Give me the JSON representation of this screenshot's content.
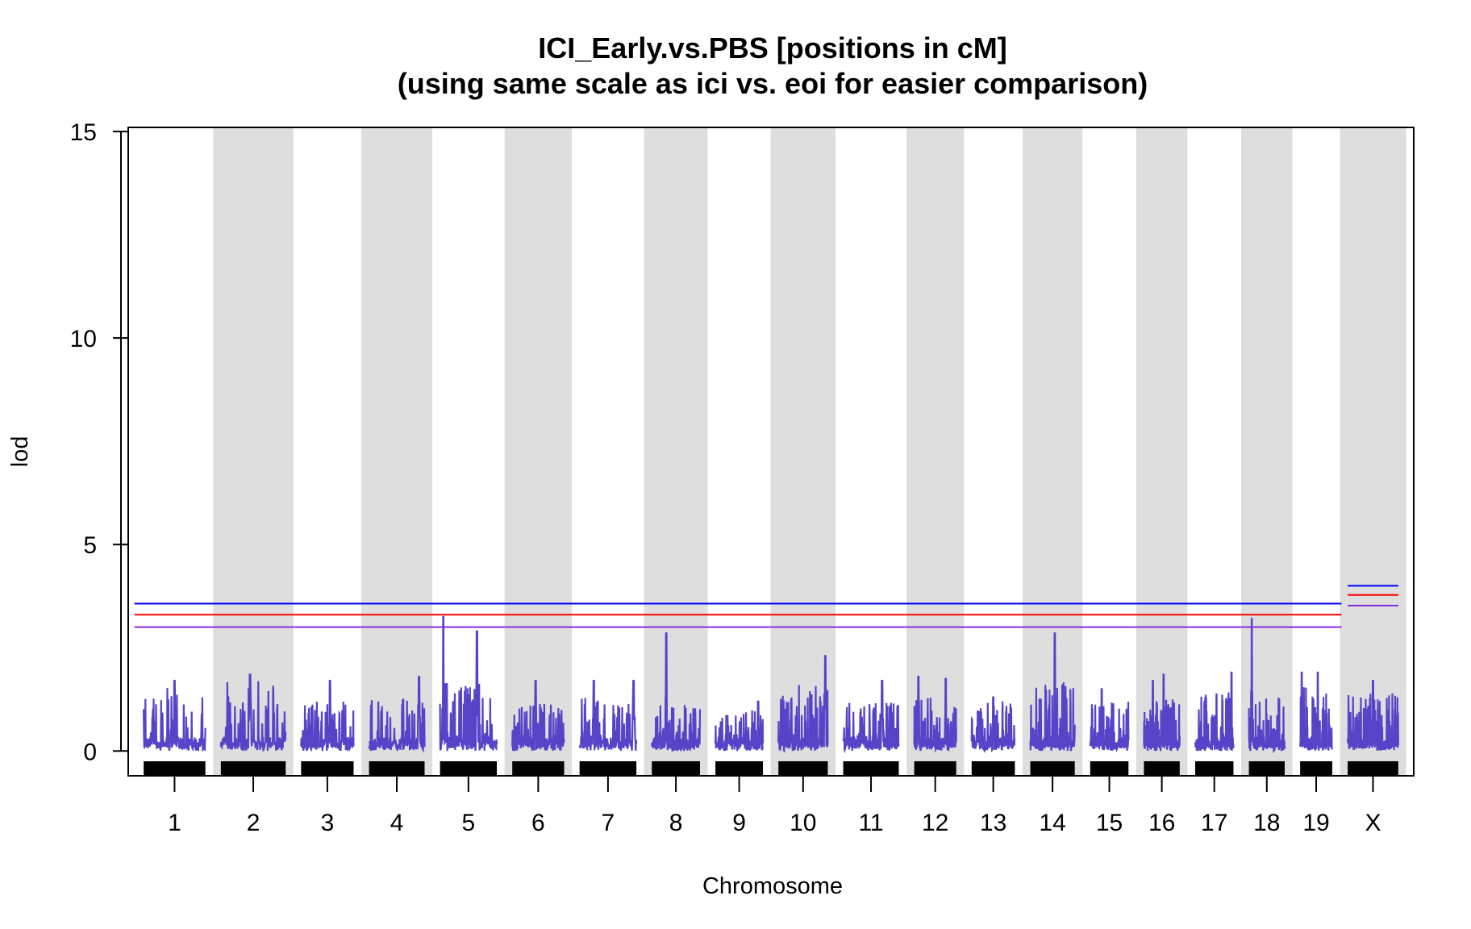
{
  "chart_data": {
    "type": "line",
    "title": "ICI_Early.vs.PBS [positions in cM]",
    "subtitle": "(using same scale as ici vs. eoi for easier comparison)",
    "xlabel": "Chromosome",
    "ylabel": "lod",
    "ylim": [
      -0.6,
      15.1
    ],
    "y_ticks": [
      0,
      5,
      10,
      15
    ],
    "y_tick_labels": [
      "0",
      "5",
      "10",
      "15"
    ],
    "chromosomes": [
      {
        "name": "1",
        "length_cM": 100,
        "baseline_max": 1.6,
        "peaks": [
          {
            "pos": 0.5,
            "lod": 1.7
          }
        ]
      },
      {
        "name": "2",
        "length_cM": 105,
        "baseline_max": 1.7,
        "peaks": [
          {
            "pos": 0.45,
            "lod": 1.85
          }
        ]
      },
      {
        "name": "3",
        "length_cM": 85,
        "baseline_max": 1.2,
        "peaks": [
          {
            "pos": 0.55,
            "lod": 1.7
          }
        ]
      },
      {
        "name": "4",
        "length_cM": 90,
        "baseline_max": 1.3,
        "peaks": [
          {
            "pos": 0.9,
            "lod": 1.8
          }
        ]
      },
      {
        "name": "5",
        "length_cM": 92,
        "baseline_max": 1.7,
        "peaks": [
          {
            "pos": 0.06,
            "lod": 3.25
          },
          {
            "pos": 0.65,
            "lod": 2.9
          }
        ]
      },
      {
        "name": "6",
        "length_cM": 84,
        "baseline_max": 1.2,
        "peaks": [
          {
            "pos": 0.45,
            "lod": 1.7
          }
        ]
      },
      {
        "name": "7",
        "length_cM": 92,
        "baseline_max": 1.3,
        "peaks": [
          {
            "pos": 0.25,
            "lod": 1.7
          },
          {
            "pos": 0.95,
            "lod": 1.7
          }
        ]
      },
      {
        "name": "8",
        "length_cM": 78,
        "baseline_max": 1.2,
        "peaks": [
          {
            "pos": 0.3,
            "lod": 2.85
          }
        ]
      },
      {
        "name": "9",
        "length_cM": 77,
        "baseline_max": 1.0,
        "peaks": [
          {
            "pos": 0.9,
            "lod": 1.2
          }
        ]
      },
      {
        "name": "10",
        "length_cM": 80,
        "baseline_max": 1.6,
        "peaks": [
          {
            "pos": 0.95,
            "lod": 2.3
          }
        ]
      },
      {
        "name": "11",
        "length_cM": 90,
        "baseline_max": 1.2,
        "peaks": [
          {
            "pos": 0.7,
            "lod": 1.7
          }
        ]
      },
      {
        "name": "12",
        "length_cM": 68,
        "baseline_max": 1.3,
        "peaks": [
          {
            "pos": 0.1,
            "lod": 1.8
          },
          {
            "pos": 0.75,
            "lod": 1.75
          }
        ]
      },
      {
        "name": "13",
        "length_cM": 70,
        "baseline_max": 1.2,
        "peaks": [
          {
            "pos": 0.5,
            "lod": 1.3
          }
        ]
      },
      {
        "name": "14",
        "length_cM": 72,
        "baseline_max": 1.7,
        "peaks": [
          {
            "pos": 0.55,
            "lod": 2.85
          }
        ]
      },
      {
        "name": "15",
        "length_cM": 62,
        "baseline_max": 1.2,
        "peaks": [
          {
            "pos": 0.3,
            "lod": 1.5
          }
        ]
      },
      {
        "name": "16",
        "length_cM": 58,
        "baseline_max": 1.3,
        "peaks": [
          {
            "pos": 0.25,
            "lod": 1.7
          },
          {
            "pos": 0.55,
            "lod": 1.85
          }
        ]
      },
      {
        "name": "17",
        "length_cM": 62,
        "baseline_max": 1.5,
        "peaks": [
          {
            "pos": 0.95,
            "lod": 1.9
          }
        ]
      },
      {
        "name": "18",
        "length_cM": 58,
        "baseline_max": 1.3,
        "peaks": [
          {
            "pos": 0.08,
            "lod": 3.2
          }
        ]
      },
      {
        "name": "19",
        "length_cM": 52,
        "baseline_max": 1.6,
        "peaks": [
          {
            "pos": 0.05,
            "lod": 1.9
          },
          {
            "pos": 0.55,
            "lod": 1.9
          }
        ]
      },
      {
        "name": "X",
        "length_cM": 82,
        "baseline_max": 1.4,
        "peaks": [
          {
            "pos": 0.5,
            "lod": 1.7
          }
        ]
      }
    ],
    "series": [
      {
        "name": "lod",
        "color": "#5544C8"
      }
    ],
    "thresholds": {
      "autosome": [
        {
          "lod": 3.57,
          "color": "#0000FF"
        },
        {
          "lod": 3.3,
          "color": "#FF0000"
        },
        {
          "lod": 3.0,
          "color": "#8A2BE2"
        }
      ],
      "x": [
        {
          "lod": 4.0,
          "color": "#0000FF"
        },
        {
          "lod": 3.78,
          "color": "#FF0000"
        },
        {
          "lod": 3.52,
          "color": "#8A2BE2"
        }
      ]
    },
    "band_color": "#DEDEDE",
    "rug_color": "#000000"
  }
}
